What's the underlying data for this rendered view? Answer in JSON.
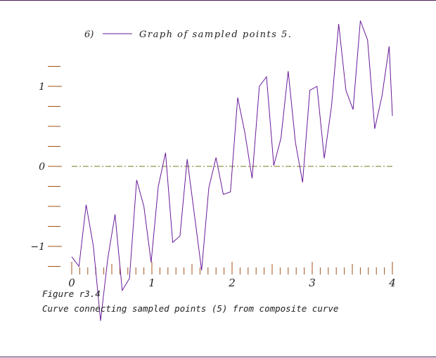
{
  "caption": {
    "figure_label": "Figure r3.4",
    "text": "Curve connecting sampled points (5) from composite curve"
  },
  "colors": {
    "border": "#4b1e5a",
    "series": "#6a1b9a",
    "axis_ticks": "#a0521a",
    "zero_line": "#7a7a1a",
    "text": "#222222"
  },
  "chart_data": {
    "type": "line",
    "title": "",
    "xlabel": "",
    "ylabel": "",
    "xlim": [
      0,
      4
    ],
    "ylim": [
      -1.25,
      1.75
    ],
    "x_ticks": [
      0,
      1,
      2,
      3,
      4
    ],
    "x_tick_labels": [
      "0",
      "1",
      "2",
      "3",
      "4"
    ],
    "y_ticks": [
      -1,
      0,
      1
    ],
    "y_tick_labels": [
      "−1",
      "0",
      "1"
    ],
    "zero_line": true,
    "legend": {
      "position": "top-left",
      "index_label": "6)"
    },
    "series": [
      {
        "name": "Graph of sampled points 5.",
        "x": [
          0.0,
          0.09,
          0.18,
          0.27,
          0.36,
          0.45,
          0.54,
          0.63,
          0.72,
          0.81,
          0.9,
          0.99,
          1.08,
          1.17,
          1.26,
          1.35,
          1.44,
          1.53,
          1.62,
          1.71,
          1.8,
          1.89,
          1.98,
          2.07,
          2.16,
          2.25,
          2.34,
          2.43,
          2.52,
          2.61,
          2.7,
          2.79,
          2.88,
          2.97,
          3.06,
          3.15,
          3.24,
          3.33,
          3.42,
          3.51,
          3.6,
          3.69,
          3.78,
          3.87,
          3.96,
          4.0
        ],
        "y": [
          -1.13,
          -1.25,
          -0.48,
          -1.0,
          -1.93,
          -1.15,
          -0.6,
          -1.55,
          -1.4,
          -0.17,
          -0.5,
          -1.2,
          -0.25,
          0.17,
          -0.95,
          -0.87,
          0.09,
          -0.6,
          -1.3,
          -0.27,
          0.11,
          -0.35,
          -0.32,
          0.86,
          0.42,
          -0.15,
          1.0,
          1.12,
          0.01,
          0.35,
          1.19,
          0.3,
          -0.2,
          0.95,
          1.0,
          0.1,
          0.75,
          1.78,
          0.95,
          0.71,
          1.82,
          1.58,
          0.47,
          0.88,
          1.5,
          0.63
        ]
      }
    ]
  }
}
